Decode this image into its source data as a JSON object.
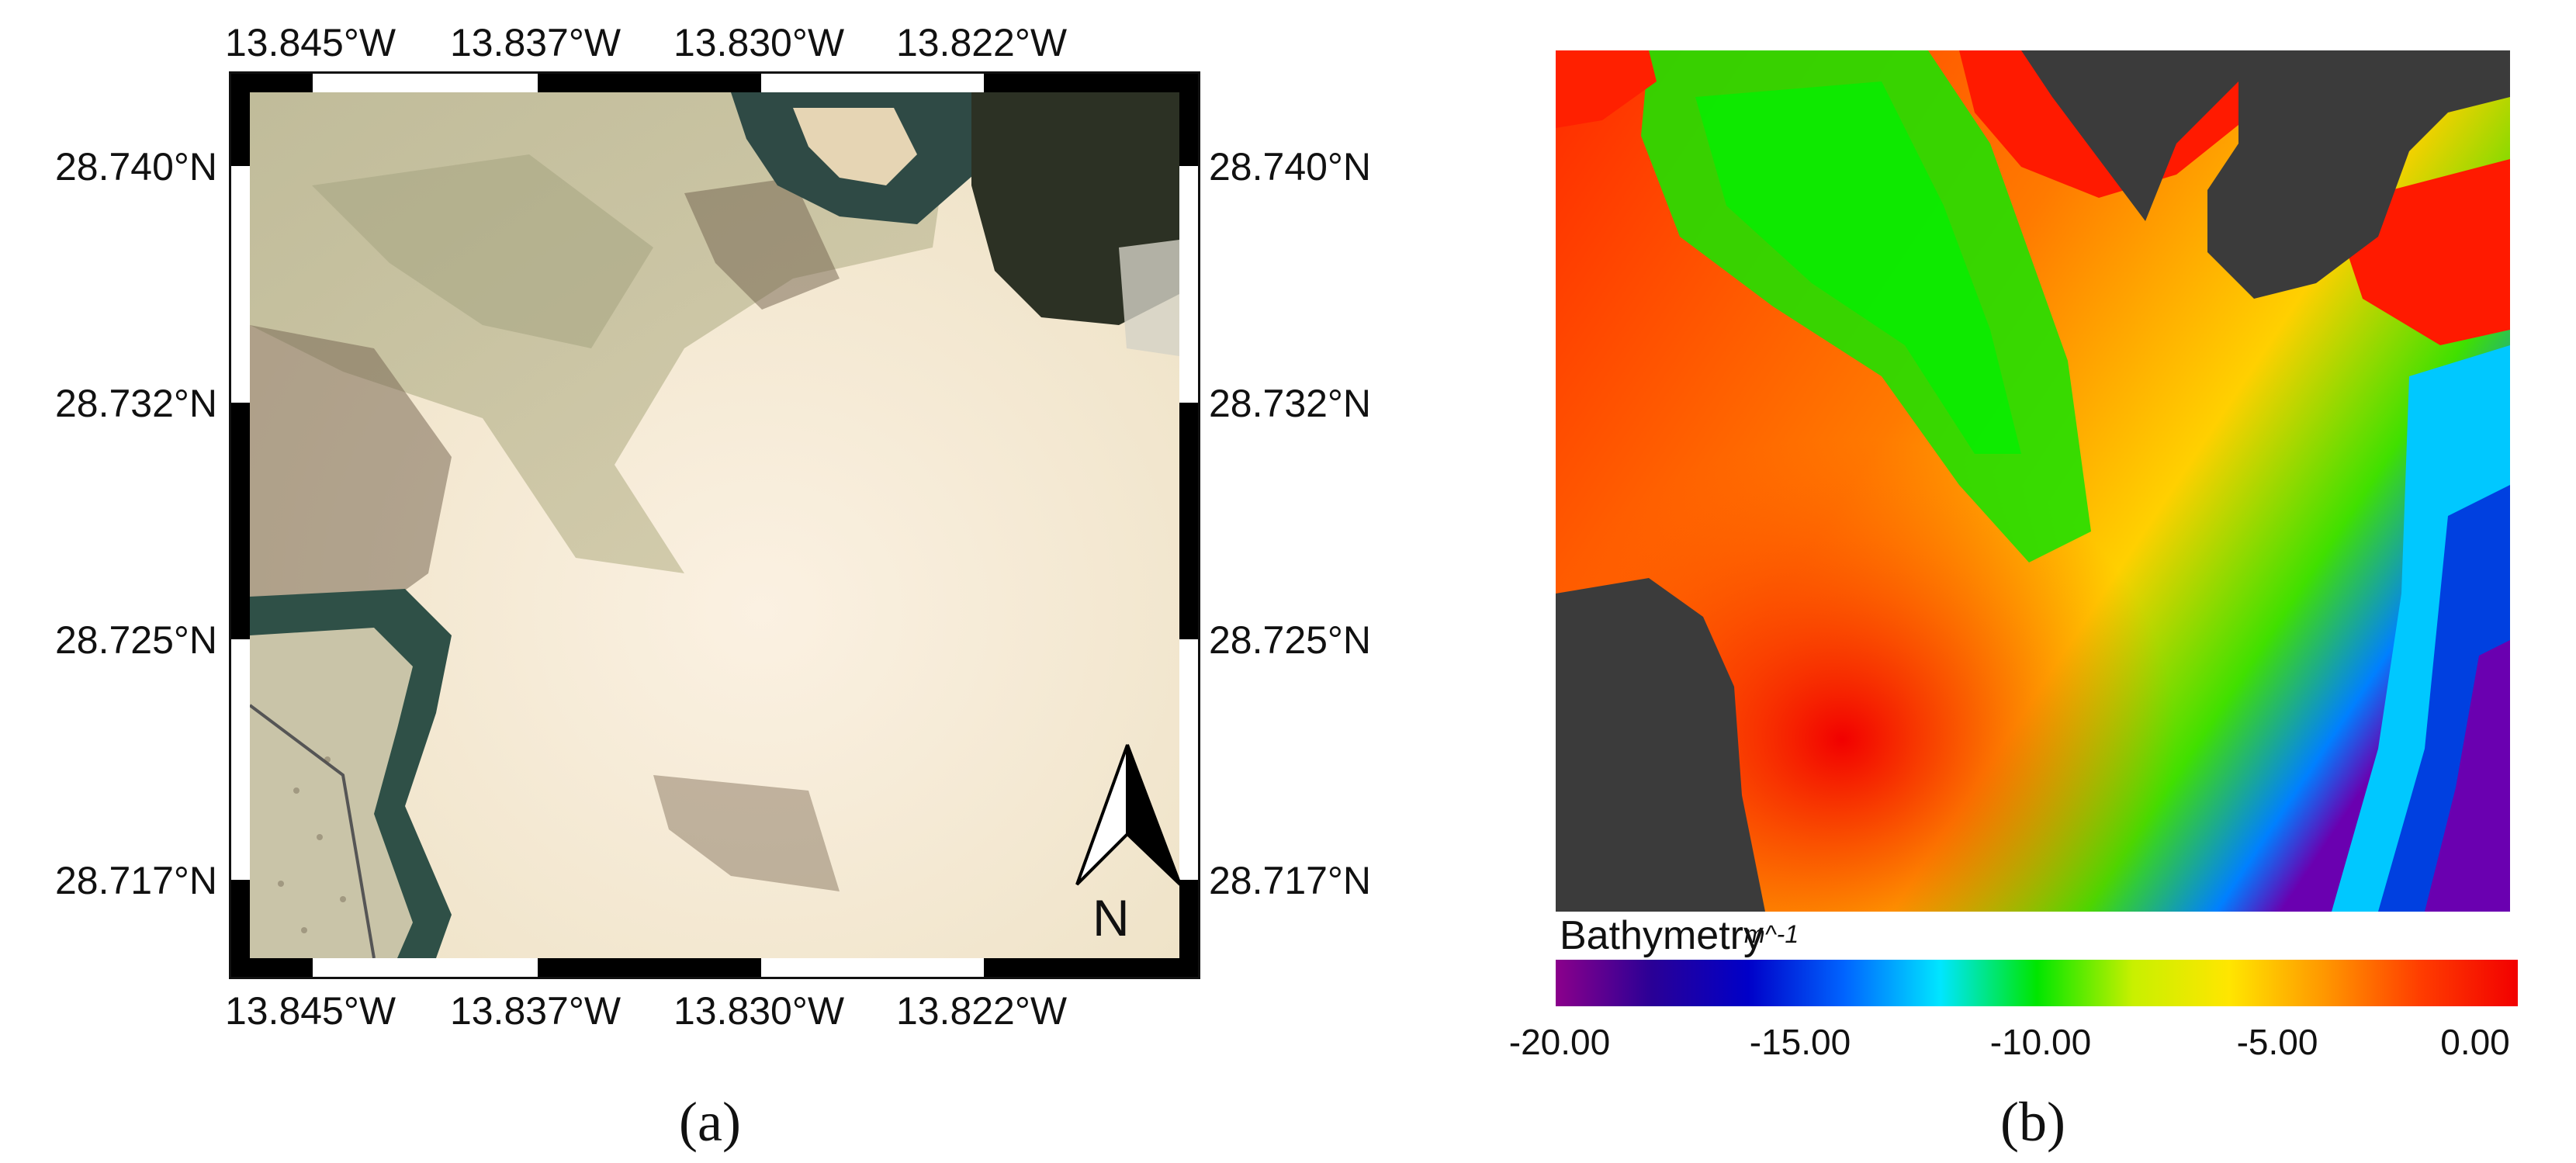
{
  "panel_a": {
    "label": "(a)",
    "top_longitudes": [
      "13.845°W",
      "13.837°W",
      "13.830°W",
      "13.822°W"
    ],
    "bottom_longitudes": [
      "13.845°W",
      "13.837°W",
      "13.830°W",
      "13.822°W"
    ],
    "left_latitudes": [
      "28.740°N",
      "28.732°N",
      "28.725°N",
      "28.717°N"
    ],
    "right_latitudes": [
      "28.740°N",
      "28.732°N",
      "28.725°N",
      "28.717°N"
    ],
    "north_arrow_label": "N"
  },
  "panel_b": {
    "label": "(b)",
    "colorbar": {
      "title": "Bathymetry",
      "unit": "m^-1",
      "ticks": [
        "-20.00",
        "-15.00",
        "-10.00",
        "-5.00",
        "0.00"
      ],
      "range": [
        -20,
        0
      ],
      "colors": [
        "#8b008b",
        "#2a0096",
        "#0000c8",
        "#0064ff",
        "#00e6ff",
        "#00e600",
        "#c8f000",
        "#ffe600",
        "#ff9600",
        "#ff3c00",
        "#f20000"
      ]
    },
    "land_color": "#3b3b3b"
  }
}
